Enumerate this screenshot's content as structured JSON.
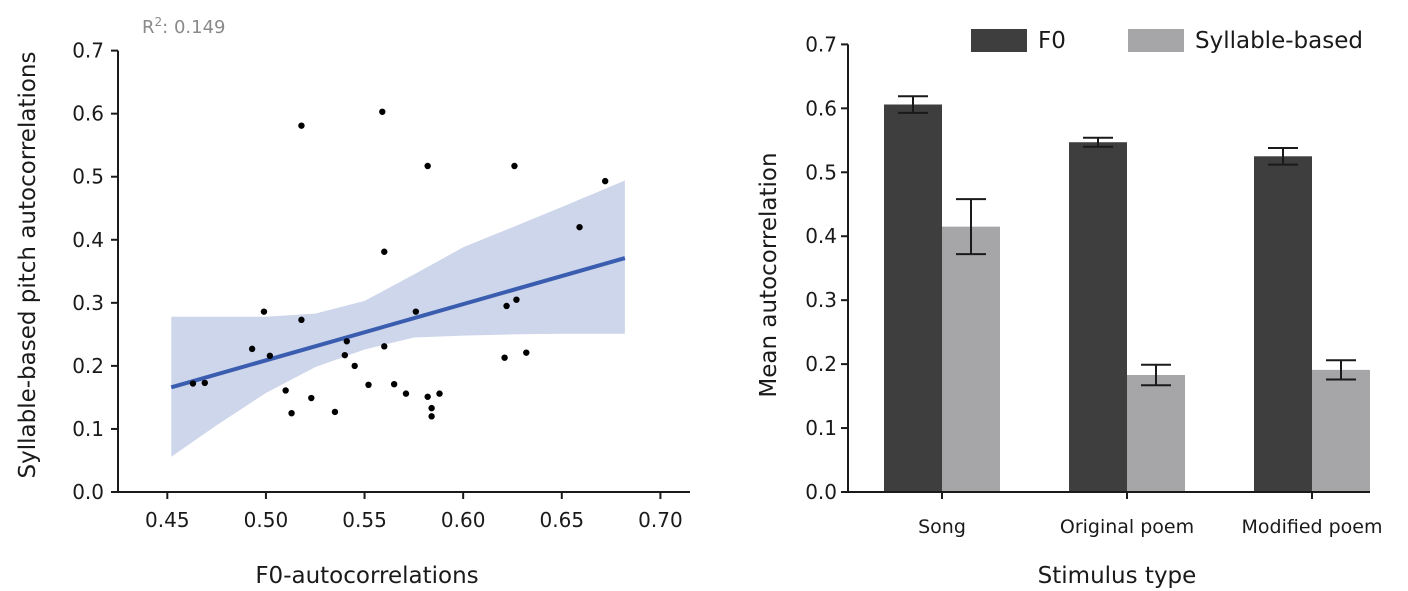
{
  "chart_data": [
    {
      "type": "scatter",
      "annotation": {
        "label": "R",
        "sup": "2",
        "value": ": 0.149"
      },
      "xlabel": "F0-autocorrelations",
      "ylabel": "Syllable-based pitch autocorrelations",
      "xlim": [
        0.425,
        0.715
      ],
      "ylim": [
        0.0,
        0.72
      ],
      "xticks": [
        "0.45",
        "0.50",
        "0.55",
        "0.60",
        "0.65",
        "0.70"
      ],
      "yticks": [
        "0.0",
        "0.1",
        "0.2",
        "0.3",
        "0.4",
        "0.5",
        "0.6",
        "0.7"
      ],
      "points": [
        [
          0.463,
          0.172
        ],
        [
          0.469,
          0.173
        ],
        [
          0.493,
          0.227
        ],
        [
          0.499,
          0.286
        ],
        [
          0.502,
          0.216
        ],
        [
          0.51,
          0.161
        ],
        [
          0.513,
          0.125
        ],
        [
          0.518,
          0.273
        ],
        [
          0.518,
          0.581
        ],
        [
          0.523,
          0.149
        ],
        [
          0.535,
          0.127
        ],
        [
          0.54,
          0.217
        ],
        [
          0.541,
          0.239
        ],
        [
          0.545,
          0.2
        ],
        [
          0.552,
          0.17
        ],
        [
          0.559,
          0.603
        ],
        [
          0.56,
          0.381
        ],
        [
          0.56,
          0.231
        ],
        [
          0.565,
          0.171
        ],
        [
          0.571,
          0.156
        ],
        [
          0.576,
          0.286
        ],
        [
          0.582,
          0.517
        ],
        [
          0.582,
          0.151
        ],
        [
          0.584,
          0.133
        ],
        [
          0.584,
          0.12
        ],
        [
          0.588,
          0.156
        ],
        [
          0.621,
          0.213
        ],
        [
          0.622,
          0.295
        ],
        [
          0.626,
          0.517
        ],
        [
          0.627,
          0.305
        ],
        [
          0.632,
          0.221
        ],
        [
          0.659,
          0.42
        ],
        [
          0.672,
          0.493
        ]
      ],
      "fit": {
        "x": [
          0.452,
          0.682
        ],
        "y": [
          0.166,
          0.371
        ]
      },
      "ci_band": {
        "x": [
          0.452,
          0.475,
          0.5,
          0.525,
          0.55,
          0.575,
          0.6,
          0.625,
          0.65,
          0.682
        ],
        "upper": [
          0.278,
          0.278,
          0.278,
          0.283,
          0.303,
          0.345,
          0.388,
          0.42,
          0.452,
          0.494
        ],
        "lower": [
          0.056,
          0.106,
          0.157,
          0.198,
          0.226,
          0.245,
          0.248,
          0.25,
          0.251,
          0.251
        ]
      },
      "colors": {
        "fit": "#3a5db0",
        "band": "#cdd6ea",
        "points": "#000000",
        "annotation": "#8a8a8a"
      }
    },
    {
      "type": "bar",
      "categories": [
        "Song",
        "Original poem",
        "Modified poem"
      ],
      "xlabel": "Stimulus type",
      "ylabel": "Mean autocorrelation",
      "ylim": [
        0.0,
        0.71
      ],
      "yticks": [
        "0.0",
        "0.1",
        "0.2",
        "0.3",
        "0.4",
        "0.5",
        "0.6",
        "0.7"
      ],
      "legend_position": "top",
      "series": [
        {
          "name": "F0",
          "values": [
            0.606,
            0.547,
            0.525
          ],
          "error": [
            0.013,
            0.007,
            0.013
          ],
          "color": "#3e3e3e"
        },
        {
          "name": "Syllable-based",
          "values": [
            0.415,
            0.183,
            0.191
          ],
          "error": [
            0.043,
            0.016,
            0.015
          ],
          "color": "#a6a6a8"
        }
      ]
    }
  ]
}
